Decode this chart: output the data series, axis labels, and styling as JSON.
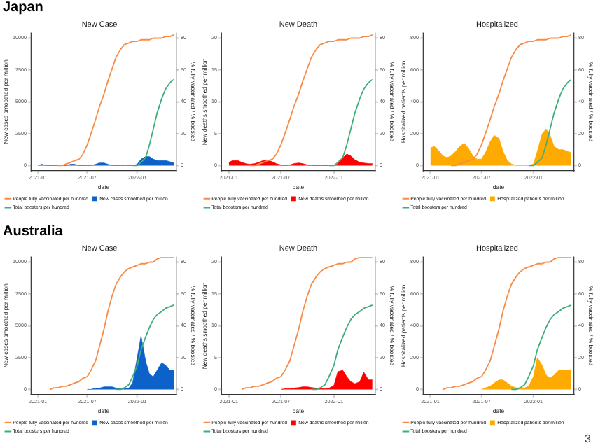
{
  "chart_data": [
    {
      "type": "line",
      "title": "New Case",
      "xlabel": "date",
      "ylabel": "New cases smoothed per million",
      "y2label": "% fully vaccinated / % boosted",
      "annotations": [
        "Japan"
      ],
      "legend": "bottom",
      "xlim": [
        "2020-12-06",
        "2022-05-25"
      ],
      "xticks": [
        {
          "value": "2021-01-01",
          "label": "2021-01"
        },
        {
          "value": "2021-07-01",
          "label": "2021-07"
        },
        {
          "value": "2022-01-01",
          "label": "2022-01"
        }
      ],
      "ylim": [
        -400,
        10400
      ],
      "yticks": [
        0,
        2500,
        5000,
        7500,
        10000
      ],
      "y2lim": [
        -3.2,
        83.2
      ],
      "y2ticks": [
        0,
        20,
        40,
        60,
        80
      ],
      "x": [
        "2021-01-01",
        "2021-01-15",
        "2021-02-01",
        "2021-02-15",
        "2021-03-01",
        "2021-03-15",
        "2021-04-01",
        "2021-04-15",
        "2021-05-01",
        "2021-05-15",
        "2021-06-01",
        "2021-06-15",
        "2021-07-01",
        "2021-07-15",
        "2021-08-01",
        "2021-08-15",
        "2021-09-01",
        "2021-09-15",
        "2021-10-01",
        "2021-10-15",
        "2021-11-01",
        "2021-11-15",
        "2021-12-01",
        "2021-12-15",
        "2022-01-01",
        "2022-01-15",
        "2022-02-01",
        "2022-02-15",
        "2022-03-01",
        "2022-03-15",
        "2022-04-01",
        "2022-04-15",
        "2022-05-01",
        "2022-05-15"
      ],
      "series": [
        {
          "name": "People fully vaccinated per hundred",
          "axis": "y2",
          "color": "#f98b45",
          "values": [
            null,
            null,
            null,
            null,
            null,
            0,
            0,
            1,
            2,
            3,
            4,
            7,
            13,
            20,
            29,
            37,
            45,
            53,
            61,
            68,
            73,
            76,
            77,
            78,
            78,
            79,
            79,
            79,
            80,
            80,
            80,
            81,
            81,
            82
          ]
        },
        {
          "name": "New cases smoothed per million",
          "type": "area",
          "color": "#0d62c9",
          "values": [
            0,
            100,
            0,
            0,
            0,
            0,
            0,
            0,
            100,
            100,
            0,
            0,
            0,
            0,
            100,
            200,
            200,
            100,
            0,
            0,
            0,
            0,
            0,
            0,
            100,
            500,
            700,
            700,
            500,
            400,
            400,
            400,
            300,
            200
          ]
        },
        {
          "name": "Total boosters per hundred",
          "axis": "y2",
          "color": "#3fae7a",
          "values": [
            null,
            null,
            null,
            null,
            null,
            null,
            null,
            null,
            null,
            null,
            null,
            null,
            null,
            null,
            null,
            null,
            null,
            null,
            null,
            null,
            null,
            null,
            null,
            0,
            0,
            2,
            5,
            13,
            23,
            33,
            42,
            48,
            52,
            54
          ]
        }
      ]
    },
    {
      "type": "line",
      "title": "New Death",
      "xlabel": "date",
      "ylabel": "New deaths smoothed per million",
      "y2label": "% fully vaccinated / % boosted",
      "legend": "bottom",
      "xlim": [
        "2020-12-06",
        "2022-05-25"
      ],
      "xticks": [
        {
          "value": "2021-01-01",
          "label": "2021-01"
        },
        {
          "value": "2021-07-01",
          "label": "2021-07"
        },
        {
          "value": "2022-01-01",
          "label": "2022-01"
        }
      ],
      "ylim": [
        -0.8,
        20.8
      ],
      "yticks": [
        0,
        5,
        10,
        15,
        20
      ],
      "y2lim": [
        -3.2,
        83.2
      ],
      "y2ticks": [
        0,
        20,
        40,
        60,
        80
      ],
      "x": [
        "2021-01-01",
        "2021-01-15",
        "2021-02-01",
        "2021-02-15",
        "2021-03-01",
        "2021-03-15",
        "2021-04-01",
        "2021-04-15",
        "2021-05-01",
        "2021-05-15",
        "2021-06-01",
        "2021-06-15",
        "2021-07-01",
        "2021-07-15",
        "2021-08-01",
        "2021-08-15",
        "2021-09-01",
        "2021-09-15",
        "2021-10-01",
        "2021-10-15",
        "2021-11-01",
        "2021-11-15",
        "2021-12-01",
        "2021-12-15",
        "2022-01-01",
        "2022-01-15",
        "2022-02-01",
        "2022-02-15",
        "2022-03-01",
        "2022-03-15",
        "2022-04-01",
        "2022-04-15",
        "2022-05-01",
        "2022-05-15"
      ],
      "series": [
        {
          "name": "People fully vaccinated per hundred",
          "axis": "y2",
          "color": "#f98b45",
          "values": [
            null,
            null,
            null,
            null,
            null,
            0,
            0,
            1,
            2,
            3,
            4,
            7,
            13,
            20,
            29,
            37,
            45,
            53,
            61,
            68,
            73,
            76,
            77,
            78,
            78,
            79,
            79,
            79,
            80,
            80,
            80,
            81,
            81,
            82
          ]
        },
        {
          "name": "New deaths smoothed per million",
          "type": "area",
          "color": "#ff0000",
          "values": [
            0.5,
            0.8,
            0.8,
            0.5,
            0.3,
            0.2,
            0.3,
            0.5,
            0.8,
            0.9,
            0.6,
            0.3,
            0.1,
            0,
            0.1,
            0.3,
            0.4,
            0.3,
            0.1,
            0,
            0,
            0,
            0,
            0,
            0,
            0.3,
            1.2,
            1.8,
            1.5,
            0.9,
            0.5,
            0.4,
            0.3,
            0.3
          ]
        },
        {
          "name": "Total boosters per hundred",
          "axis": "y2",
          "color": "#3fae7a",
          "values": [
            null,
            null,
            null,
            null,
            null,
            null,
            null,
            null,
            null,
            null,
            null,
            null,
            null,
            null,
            null,
            null,
            null,
            null,
            null,
            null,
            null,
            null,
            null,
            0,
            0,
            2,
            5,
            13,
            23,
            33,
            42,
            48,
            52,
            54
          ]
        }
      ]
    },
    {
      "type": "line",
      "title": "Hospitalized",
      "xlabel": "date",
      "ylabel": "Hospitalized patients per million",
      "y2label": "% fully vaccinated / % boosted",
      "legend": "bottom",
      "xlim": [
        "2020-12-06",
        "2022-05-25"
      ],
      "xticks": [
        {
          "value": "2021-01-01",
          "label": "2021-01"
        },
        {
          "value": "2021-07-01",
          "label": "2021-07"
        },
        {
          "value": "2022-01-01",
          "label": "2022-01"
        }
      ],
      "ylim": [
        -32,
        832
      ],
      "yticks": [
        0,
        200,
        400,
        600,
        800
      ],
      "y2lim": [
        -3.2,
        83.2
      ],
      "y2ticks": [
        0,
        20,
        40,
        60,
        80
      ],
      "x": [
        "2021-01-01",
        "2021-01-15",
        "2021-02-01",
        "2021-02-15",
        "2021-03-01",
        "2021-03-15",
        "2021-04-01",
        "2021-04-15",
        "2021-05-01",
        "2021-05-15",
        "2021-06-01",
        "2021-06-15",
        "2021-07-01",
        "2021-07-15",
        "2021-08-01",
        "2021-08-15",
        "2021-09-01",
        "2021-09-15",
        "2021-10-01",
        "2021-10-15",
        "2021-11-01",
        "2021-11-15",
        "2021-12-01",
        "2021-12-15",
        "2022-01-01",
        "2022-01-15",
        "2022-02-01",
        "2022-02-15",
        "2022-03-01",
        "2022-03-15",
        "2022-04-01",
        "2022-04-15",
        "2022-05-01",
        "2022-05-15"
      ],
      "series": [
        {
          "name": "People fully vaccinated per hundred",
          "axis": "y2",
          "color": "#f98b45",
          "values": [
            null,
            null,
            null,
            null,
            null,
            0,
            0,
            1,
            2,
            3,
            4,
            7,
            13,
            20,
            29,
            37,
            45,
            53,
            61,
            68,
            73,
            76,
            77,
            78,
            78,
            79,
            79,
            79,
            80,
            80,
            80,
            81,
            81,
            82
          ]
        },
        {
          "name": "Hospitalized patients per million",
          "type": "area",
          "color": "#ffaa00",
          "values": [
            110,
            120,
            90,
            60,
            50,
            60,
            90,
            120,
            140,
            110,
            60,
            40,
            40,
            80,
            150,
            190,
            170,
            90,
            30,
            10,
            0,
            0,
            0,
            0,
            10,
            90,
            200,
            230,
            190,
            120,
            100,
            100,
            90,
            80
          ]
        },
        {
          "name": "Total boosters per hundred",
          "axis": "y2",
          "color": "#3fae7a",
          "values": [
            null,
            null,
            null,
            null,
            null,
            null,
            null,
            null,
            null,
            null,
            null,
            null,
            null,
            null,
            null,
            null,
            null,
            null,
            null,
            null,
            null,
            null,
            null,
            0,
            0,
            2,
            5,
            13,
            23,
            33,
            42,
            48,
            52,
            54
          ]
        }
      ]
    },
    {
      "type": "line",
      "title": "New Case",
      "xlabel": "date",
      "ylabel": "New cases smoothed per million",
      "y2label": "% fully vaccinated / % boosted",
      "annotations": [
        "Australia"
      ],
      "legend": "bottom",
      "xlim": [
        "2020-12-06",
        "2022-05-25"
      ],
      "xticks": [
        {
          "value": "2021-01-01",
          "label": "2021-01"
        },
        {
          "value": "2021-07-01",
          "label": "2021-07"
        },
        {
          "value": "2022-01-01",
          "label": "2022-01"
        }
      ],
      "ylim": [
        -400,
        10400
      ],
      "yticks": [
        0,
        2500,
        5000,
        7500,
        10000
      ],
      "y2lim": [
        -3.2,
        83.2
      ],
      "y2ticks": [
        0,
        20,
        40,
        60,
        80
      ],
      "x": [
        "2021-02-15",
        "2021-03-01",
        "2021-03-15",
        "2021-04-01",
        "2021-04-15",
        "2021-05-01",
        "2021-05-15",
        "2021-06-01",
        "2021-06-15",
        "2021-07-01",
        "2021-07-15",
        "2021-08-01",
        "2021-08-15",
        "2021-09-01",
        "2021-09-15",
        "2021-10-01",
        "2021-10-15",
        "2021-11-01",
        "2021-11-15",
        "2021-12-01",
        "2021-12-15",
        "2022-01-01",
        "2022-01-15",
        "2022-02-01",
        "2022-02-15",
        "2022-03-01",
        "2022-03-15",
        "2022-04-01",
        "2022-04-15",
        "2022-05-01",
        "2022-05-15"
      ],
      "series": [
        {
          "name": "People fully vaccinated per hundred",
          "axis": "y2",
          "color": "#f98b45",
          "values": [
            0,
            1,
            1,
            2,
            2,
            3,
            4,
            5,
            7,
            8,
            12,
            18,
            27,
            38,
            49,
            59,
            66,
            71,
            74,
            76,
            77,
            78,
            79,
            79,
            80,
            80,
            82,
            83,
            83,
            83,
            83
          ]
        },
        {
          "name": "New cases smoothed per million",
          "type": "area",
          "color": "#0d62c9",
          "values": [
            null,
            null,
            null,
            null,
            null,
            null,
            null,
            null,
            null,
            0,
            0,
            100,
            100,
            200,
            200,
            200,
            100,
            100,
            100,
            100,
            500,
            2500,
            4200,
            2200,
            1200,
            1000,
            1500,
            2100,
            1900,
            1500,
            1500
          ]
        },
        {
          "name": "Total boosters per hundred",
          "axis": "y2",
          "color": "#3fae7a",
          "values": [
            null,
            null,
            null,
            null,
            null,
            null,
            null,
            null,
            null,
            null,
            null,
            null,
            null,
            null,
            null,
            null,
            0,
            0,
            1,
            3,
            8,
            15,
            25,
            33,
            39,
            44,
            47,
            49,
            51,
            52,
            53
          ]
        }
      ]
    },
    {
      "type": "line",
      "title": "New Death",
      "xlabel": "date",
      "ylabel": "New deaths smoothed per million",
      "y2label": "% fully vaccinated / % boosted",
      "legend": "bottom",
      "xlim": [
        "2020-12-06",
        "2022-05-25"
      ],
      "xticks": [
        {
          "value": "2021-01-01",
          "label": "2021-01"
        },
        {
          "value": "2021-07-01",
          "label": "2021-07"
        },
        {
          "value": "2022-01-01",
          "label": "2022-01"
        }
      ],
      "ylim": [
        -0.8,
        20.8
      ],
      "yticks": [
        0,
        5,
        10,
        15,
        20
      ],
      "y2lim": [
        -3.2,
        83.2
      ],
      "y2ticks": [
        0,
        20,
        40,
        60,
        80
      ],
      "x": [
        "2021-02-15",
        "2021-03-01",
        "2021-03-15",
        "2021-04-01",
        "2021-04-15",
        "2021-05-01",
        "2021-05-15",
        "2021-06-01",
        "2021-06-15",
        "2021-07-01",
        "2021-07-15",
        "2021-08-01",
        "2021-08-15",
        "2021-09-01",
        "2021-09-15",
        "2021-10-01",
        "2021-10-15",
        "2021-11-01",
        "2021-11-15",
        "2021-12-01",
        "2021-12-15",
        "2022-01-01",
        "2022-01-15",
        "2022-02-01",
        "2022-02-15",
        "2022-03-01",
        "2022-03-15",
        "2022-04-01",
        "2022-04-15",
        "2022-05-01",
        "2022-05-15"
      ],
      "series": [
        {
          "name": "People fully vaccinated per hundred",
          "axis": "y2",
          "color": "#f98b45",
          "values": [
            0,
            1,
            1,
            2,
            2,
            3,
            4,
            5,
            7,
            8,
            12,
            18,
            27,
            38,
            49,
            59,
            66,
            71,
            74,
            76,
            77,
            78,
            79,
            79,
            80,
            80,
            82,
            83,
            83,
            83,
            83
          ]
        },
        {
          "name": "New deaths smoothed per million",
          "type": "area",
          "color": "#ff0000",
          "values": [
            null,
            null,
            null,
            null,
            null,
            null,
            null,
            null,
            null,
            0,
            0.1,
            0.1,
            0.2,
            0.3,
            0.4,
            0.4,
            0.3,
            0.2,
            0.2,
            0.1,
            0.2,
            0.6,
            2.8,
            3,
            2,
            1.2,
            0.9,
            1.2,
            2.7,
            1.5,
            1.5
          ]
        },
        {
          "name": "Total boosters per hundred",
          "axis": "y2",
          "color": "#3fae7a",
          "values": [
            null,
            null,
            null,
            null,
            null,
            null,
            null,
            null,
            null,
            null,
            null,
            null,
            null,
            null,
            null,
            null,
            0,
            0,
            1,
            3,
            8,
            15,
            25,
            33,
            39,
            44,
            47,
            49,
            51,
            52,
            53
          ]
        }
      ]
    },
    {
      "type": "line",
      "title": "Hospitalized",
      "xlabel": "date",
      "ylabel": "Hospitalized patients per million",
      "y2label": "% fully vaccinated / % boosted",
      "annotations": [
        "3"
      ],
      "legend": "bottom",
      "xlim": [
        "2020-12-06",
        "2022-05-25"
      ],
      "xticks": [
        {
          "value": "2021-01-01",
          "label": "2021-01"
        },
        {
          "value": "2021-07-01",
          "label": "2021-07"
        },
        {
          "value": "2022-01-01",
          "label": "2022-01"
        }
      ],
      "ylim": [
        -32,
        832
      ],
      "yticks": [
        0,
        200,
        400,
        600,
        800
      ],
      "y2lim": [
        -3.2,
        83.2
      ],
      "y2ticks": [
        0,
        20,
        40,
        60,
        80
      ],
      "x": [
        "2021-02-15",
        "2021-03-01",
        "2021-03-15",
        "2021-04-01",
        "2021-04-15",
        "2021-05-01",
        "2021-05-15",
        "2021-06-01",
        "2021-06-15",
        "2021-07-01",
        "2021-07-15",
        "2021-08-01",
        "2021-08-15",
        "2021-09-01",
        "2021-09-15",
        "2021-10-01",
        "2021-10-15",
        "2021-11-01",
        "2021-11-15",
        "2021-12-01",
        "2021-12-15",
        "2022-01-01",
        "2022-01-15",
        "2022-02-01",
        "2022-02-15",
        "2022-03-01",
        "2022-03-15",
        "2022-04-01",
        "2022-04-15",
        "2022-05-01",
        "2022-05-15"
      ],
      "series": [
        {
          "name": "People fully vaccinated per hundred",
          "axis": "y2",
          "color": "#f98b45",
          "values": [
            0,
            1,
            1,
            2,
            2,
            3,
            4,
            5,
            7,
            8,
            12,
            18,
            27,
            38,
            49,
            59,
            66,
            71,
            74,
            76,
            77,
            78,
            79,
            79,
            80,
            80,
            82,
            83,
            83,
            83,
            83
          ]
        },
        {
          "name": "Hospitalized patients per million",
          "type": "area",
          "color": "#ffaa00",
          "values": [
            null,
            null,
            null,
            null,
            null,
            null,
            null,
            null,
            null,
            0,
            10,
            20,
            40,
            60,
            60,
            40,
            20,
            10,
            10,
            10,
            20,
            80,
            200,
            150,
            90,
            70,
            90,
            120,
            120,
            120,
            120
          ]
        },
        {
          "name": "Total boosters per hundred",
          "axis": "y2",
          "color": "#3fae7a",
          "values": [
            null,
            null,
            null,
            null,
            null,
            null,
            null,
            null,
            null,
            null,
            null,
            null,
            null,
            null,
            null,
            null,
            0,
            0,
            1,
            3,
            8,
            15,
            25,
            33,
            39,
            44,
            47,
            49,
            51,
            52,
            53
          ]
        }
      ]
    }
  ]
}
